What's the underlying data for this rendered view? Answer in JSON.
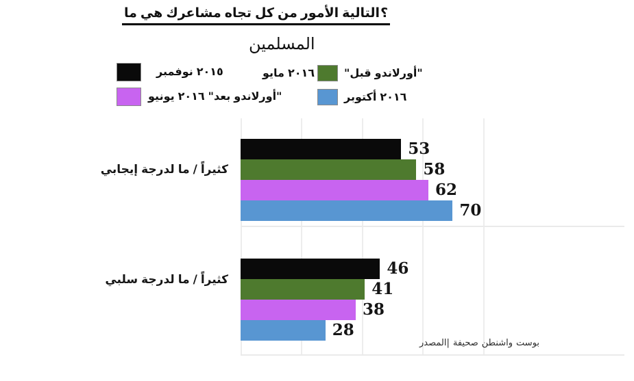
{
  "title": "ما هي مشاعرك تجاه كل من الأمور التالية؟",
  "subtitle": "المسلمين",
  "legend": {
    "position": "top",
    "items": [
      {
        "text_before_swatch": "",
        "text_after_swatch": "نوفمبر ٢٠١٥",
        "color": "#0a0a0a"
      },
      {
        "text_before_swatch": "مايو ٢٠١٦",
        "text_after_swatch": "\"قبل أورلاندو\"",
        "color": "#4e7a2e"
      },
      {
        "text_before_swatch": "",
        "text_after_swatch": "يونيو ٢٠١٦ \"بعد أورلاندو\"",
        "color": "#c864f0"
      },
      {
        "text_before_swatch": "",
        "text_after_swatch": "أكتوبر ٢٠١٦",
        "color": "#5896d2"
      }
    ]
  },
  "chart_data": {
    "type": "bar",
    "orientation": "horizontal",
    "title": "ما هي مشاعرك تجاه كل من الأمور التالية؟",
    "subtitle": "المسلمين",
    "categories": [
      "إيجابي لدرجة ما / كثيراً",
      "سلبي لدرجة ما / كثيراً"
    ],
    "series": [
      {
        "name": "نوفمبر ٢٠١٥",
        "color": "#0a0a0a",
        "values": [
          53,
          46
        ]
      },
      {
        "name": "مايو ٢٠١٦ \"قبل أورلاندو\"",
        "color": "#4e7a2e",
        "values": [
          58,
          41
        ]
      },
      {
        "name": "يونيو ٢٠١٦ \"بعد أورلاندو\"",
        "color": "#c864f0",
        "values": [
          62,
          38
        ]
      },
      {
        "name": "أكتوبر ٢٠١٦",
        "color": "#5896d2",
        "values": [
          70,
          28
        ]
      }
    ],
    "xlim": [
      0,
      126
    ],
    "gridline_step": 20,
    "grid": true,
    "value_labels": true,
    "legend_position": "top"
  },
  "source": "المصدر| صحيفة واشنطن بوست"
}
